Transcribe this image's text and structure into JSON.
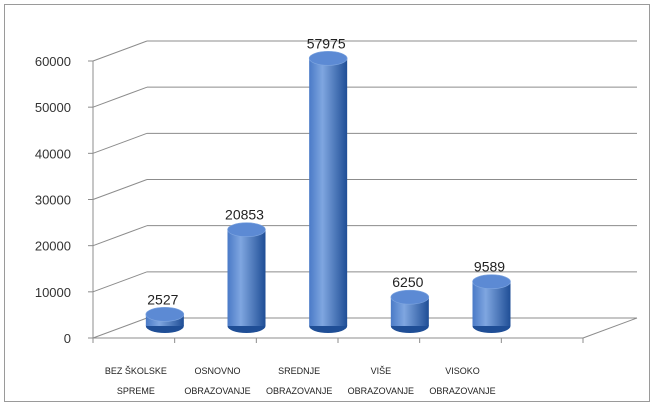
{
  "chart_data": {
    "type": "bar",
    "categories": [
      [
        "BEZ ŠKOLSKE",
        "SPREME"
      ],
      [
        "OSNOVNO",
        "OBRAZOVANJE"
      ],
      [
        "SREDNJE",
        "OBRAZOVANJE"
      ],
      [
        "VIŠE",
        "OBRAZOVANJE"
      ],
      [
        "VISOKO",
        "OBRAZOVANJE"
      ]
    ],
    "values": [
      2527,
      20853,
      57975,
      6250,
      9589
    ],
    "data_labels": [
      "2527",
      "20853",
      "57975",
      "6250",
      "9589"
    ],
    "ylim": [
      0,
      60000
    ],
    "yticks": [
      "0",
      "10000",
      "20000",
      "30000",
      "40000",
      "50000",
      "60000"
    ],
    "grid": true,
    "three_d": true,
    "bar_shape": "cylinder",
    "legend": "none",
    "colors": {
      "bar_light": "#7fa6e0",
      "bar_mid": "#4a7ac7",
      "bar_dark": "#1f4e96",
      "bar_top": "#5c8ad4",
      "grid": "#8c8c8c",
      "frame": "#9a9a9a"
    }
  }
}
